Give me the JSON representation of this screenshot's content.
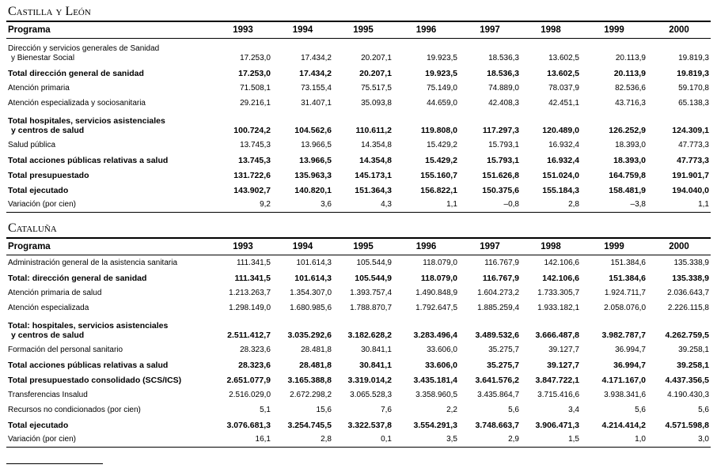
{
  "columns": [
    "Programa",
    "1993",
    "1994",
    "1995",
    "1996",
    "1997",
    "1998",
    "1999",
    "2000"
  ],
  "sections": [
    {
      "title": "Castilla y León",
      "rows": [
        {
          "label": [
            "Dirección y servicios generales de Sanidad",
            "y Bienestar Social"
          ],
          "bold": false,
          "values": [
            "17.253,0",
            "17.434,2",
            "20.207,1",
            "19.923,5",
            "18.536,3",
            "13.602,5",
            "20.113,9",
            "19.819,3"
          ]
        },
        {
          "label": [
            "Total dirección general de sanidad"
          ],
          "bold": true,
          "values": [
            "17.253,0",
            "17.434,2",
            "20.207,1",
            "19.923,5",
            "18.536,3",
            "13.602,5",
            "20.113,9",
            "19.819,3"
          ]
        },
        {
          "label": [
            "Atención primaria"
          ],
          "bold": false,
          "values": [
            "71.508,1",
            "73.155,4",
            "75.517,5",
            "75.149,0",
            "74.889,0",
            "78.037,9",
            "82.536,6",
            "59.170,8"
          ]
        },
        {
          "label": [
            "Atención especializada y sociosanitaria"
          ],
          "bold": false,
          "values": [
            "29.216,1",
            "31.407,1",
            "35.093,8",
            "44.659,0",
            "42.408,3",
            "42.451,1",
            "43.716,3",
            "65.138,3"
          ]
        },
        {
          "label": [
            "Total hospitales, servicios asistenciales",
            "y centros de salud"
          ],
          "bold": true,
          "values": [
            "100.724,2",
            "104.562,6",
            "110.611,2",
            "119.808,0",
            "117.297,3",
            "120.489,0",
            "126.252,9",
            "124.309,1"
          ]
        },
        {
          "label": [
            "Salud pública"
          ],
          "bold": false,
          "values": [
            "13.745,3",
            "13.966,5",
            "14.354,8",
            "15.429,2",
            "15.793,1",
            "16.932,4",
            "18.393,0",
            "47.773,3"
          ]
        },
        {
          "label": [
            "Total acciones públicas relativas a salud"
          ],
          "bold": true,
          "values": [
            "13.745,3",
            "13.966,5",
            "14.354,8",
            "15.429,2",
            "15.793,1",
            "16.932,4",
            "18.393,0",
            "47.773,3"
          ]
        },
        {
          "label": [
            "Total presupuestado"
          ],
          "bold": true,
          "values": [
            "131.722,6",
            "135.963,3",
            "145.173,1",
            "155.160,7",
            "151.626,8",
            "151.024,0",
            "164.759,8",
            "191.901,7"
          ]
        },
        {
          "label": [
            "Total ejecutado"
          ],
          "bold": true,
          "values": [
            "143.902,7",
            "140.820,1",
            "151.364,3",
            "156.822,1",
            "150.375,6",
            "155.184,3",
            "158.481,9",
            "194.040,0"
          ]
        },
        {
          "label": [
            "Variación (por cien)"
          ],
          "bold": false,
          "values": [
            "9,2",
            "3,6",
            "4,3",
            "1,1",
            "–0,8",
            "2,8",
            "–3,8",
            "1,1"
          ]
        }
      ]
    },
    {
      "title": "Cataluña",
      "rows": [
        {
          "label": [
            "Administración general de la asistencia sanitaria"
          ],
          "bold": false,
          "values": [
            "111.341,5",
            "101.614,3",
            "105.544,9",
            "118.079,0",
            "116.767,9",
            "142.106,6",
            "151.384,6",
            "135.338,9"
          ]
        },
        {
          "label": [
            "Total: dirección general de sanidad"
          ],
          "bold": true,
          "values": [
            "111.341,5",
            "101.614,3",
            "105.544,9",
            "118.079,0",
            "116.767,9",
            "142.106,6",
            "151.384,6",
            "135.338,9"
          ]
        },
        {
          "label": [
            "Atención primaria de salud"
          ],
          "bold": false,
          "values": [
            "1.213.263,7",
            "1.354.307,0",
            "1.393.757,4",
            "1.490.848,9",
            "1.604.273,2",
            "1.733.305,7",
            "1.924.711,7",
            "2.036.643,7"
          ]
        },
        {
          "label": [
            "Atención especializada"
          ],
          "bold": false,
          "values": [
            "1.298.149,0",
            "1.680.985,6",
            "1.788.870,7",
            "1.792.647,5",
            "1.885.259,4",
            "1.933.182,1",
            "2.058.076,0",
            "2.226.115,8"
          ]
        },
        {
          "label": [
            "Total: hospitales, servicios asistenciales",
            "y centros de salud"
          ],
          "bold": true,
          "values": [
            "2.511.412,7",
            "3.035.292,6",
            "3.182.628,2",
            "3.283.496,4",
            "3.489.532,6",
            "3.666.487,8",
            "3.982.787,7",
            "4.262.759,5"
          ]
        },
        {
          "label": [
            "Formación del personal sanitario"
          ],
          "bold": false,
          "values": [
            "28.323,6",
            "28.481,8",
            "30.841,1",
            "33.606,0",
            "35.275,7",
            "39.127,7",
            "36.994,7",
            "39.258,1"
          ]
        },
        {
          "label": [
            "Total acciones públicas relativas a salud"
          ],
          "bold": true,
          "values": [
            "28.323,6",
            "28.481,8",
            "30.841,1",
            "33.606,0",
            "35.275,7",
            "39.127,7",
            "36.994,7",
            "39.258,1"
          ]
        },
        {
          "label": [
            "Total presupuestado consolidado (SCS/ICS)"
          ],
          "bold": true,
          "values": [
            "2.651.077,9",
            "3.165.388,8",
            "3.319.014,2",
            "3.435.181,4",
            "3.641.576,2",
            "3.847.722,1",
            "4.171.167,0",
            "4.437.356,5"
          ]
        },
        {
          "label": [
            "Transferencias Insalud"
          ],
          "bold": false,
          "values": [
            "2.516.029,0",
            "2.672.298,2",
            "3.065.528,3",
            "3.358.960,5",
            "3.435.864,7",
            "3.715.416,6",
            "3.938.341,6",
            "4.190.430,3"
          ]
        },
        {
          "label": [
            "Recursos no condicionados (por cien)"
          ],
          "bold": false,
          "values": [
            "5,1",
            "15,6",
            "7,6",
            "2,2",
            "5,6",
            "3,4",
            "5,6",
            "5,6"
          ]
        },
        {
          "label": [
            "Total ejecutado"
          ],
          "bold": true,
          "values": [
            "3.076.681,3",
            "3.254.745,5",
            "3.322.537,8",
            "3.554.291,3",
            "3.748.663,7",
            "3.906.471,3",
            "4.214.414,2",
            "4.571.598,8"
          ]
        },
        {
          "label": [
            "Variación (por cien)"
          ],
          "bold": false,
          "values": [
            "16,1",
            "2,8",
            "0,1",
            "3,5",
            "2,9",
            "1,5",
            "1,0",
            "3,0"
          ]
        }
      ]
    }
  ]
}
